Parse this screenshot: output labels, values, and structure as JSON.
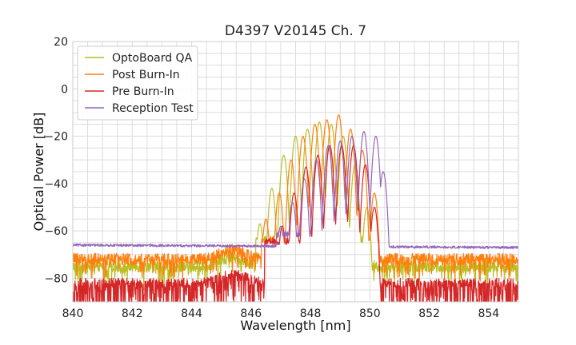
{
  "chart_data": {
    "type": "line",
    "title": "D4397 V20145 Ch. 7",
    "xlabel": "Wavelength [nm]",
    "ylabel": "Optical Power [dB]",
    "xlim": [
      840,
      855
    ],
    "ylim": [
      -90,
      20
    ],
    "x_ticks": [
      840,
      842,
      844,
      846,
      848,
      850,
      852,
      854
    ],
    "y_ticks": [
      20,
      0,
      -20,
      -40,
      -60,
      -80
    ],
    "x_tick_labels": [
      "840",
      "842",
      "844",
      "846",
      "848",
      "850",
      "852",
      "854"
    ],
    "y_tick_labels": [
      "20",
      "0",
      "−20",
      "−40",
      "−60",
      "−80"
    ],
    "grid": true,
    "legend": "top-left",
    "series": [
      {
        "name": "OptoBoard QA",
        "color": "#bcbd22",
        "noise_floor": -75,
        "peaks": [
          {
            "x": 846.3,
            "y": -57
          },
          {
            "x": 846.7,
            "y": -42
          },
          {
            "x": 847.1,
            "y": -28
          },
          {
            "x": 847.5,
            "y": -20
          },
          {
            "x": 847.9,
            "y": -17
          },
          {
            "x": 848.3,
            "y": -14
          },
          {
            "x": 848.7,
            "y": -15
          },
          {
            "x": 849.1,
            "y": -20
          },
          {
            "x": 849.5,
            "y": -32
          },
          {
            "x": 849.9,
            "y": -50
          }
        ]
      },
      {
        "name": "Post Burn-In",
        "color": "#ff7f0e",
        "noise_floor": -72,
        "peaks": [
          {
            "x": 846.5,
            "y": -55
          },
          {
            "x": 846.95,
            "y": -44
          },
          {
            "x": 847.35,
            "y": -30
          },
          {
            "x": 847.75,
            "y": -20
          },
          {
            "x": 848.15,
            "y": -15
          },
          {
            "x": 848.55,
            "y": -13
          },
          {
            "x": 848.95,
            "y": -11
          },
          {
            "x": 849.35,
            "y": -17
          },
          {
            "x": 849.75,
            "y": -26
          },
          {
            "x": 850.15,
            "y": -44
          }
        ]
      },
      {
        "name": "Pre Burn-In",
        "color": "#d62728",
        "noise_floor": -82,
        "peaks": [
          {
            "x": 846.6,
            "y": -64
          },
          {
            "x": 847.05,
            "y": -58
          },
          {
            "x": 847.45,
            "y": -44
          },
          {
            "x": 847.85,
            "y": -33
          },
          {
            "x": 848.25,
            "y": -28
          },
          {
            "x": 848.65,
            "y": -24
          },
          {
            "x": 849.05,
            "y": -24
          },
          {
            "x": 849.45,
            "y": -24
          },
          {
            "x": 849.85,
            "y": -32
          },
          {
            "x": 850.15,
            "y": -50
          }
        ]
      },
      {
        "name": "Reception Test",
        "color": "#9467bd",
        "noise_floor": -66,
        "peaks": [
          {
            "x": 847.0,
            "y": -58
          },
          {
            "x": 847.4,
            "y": -48
          },
          {
            "x": 847.8,
            "y": -38
          },
          {
            "x": 848.2,
            "y": -30
          },
          {
            "x": 848.6,
            "y": -24
          },
          {
            "x": 849.0,
            "y": -22
          },
          {
            "x": 849.4,
            "y": -20
          },
          {
            "x": 849.8,
            "y": -18
          },
          {
            "x": 850.2,
            "y": -20
          },
          {
            "x": 850.45,
            "y": -35
          }
        ]
      }
    ]
  }
}
